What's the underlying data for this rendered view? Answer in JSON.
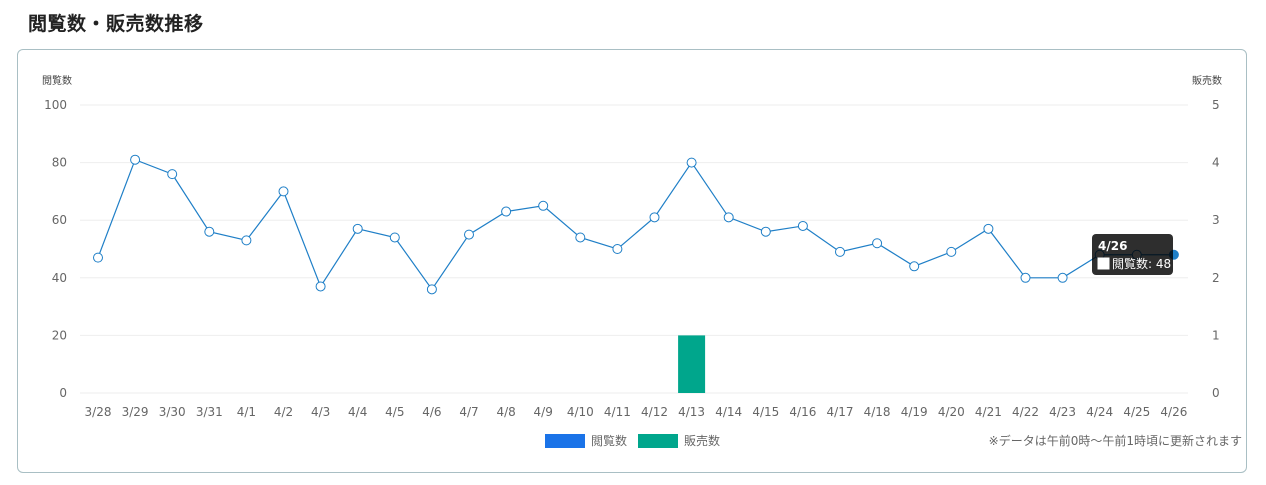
{
  "page_title": "閲覧数・販売数推移",
  "note": "※データは午前0時〜午前1時頃に更新されます",
  "legend": [
    {
      "label": "閲覧数",
      "color": "#1a73e8"
    },
    {
      "label": "販売数",
      "color": "#00a68c"
    }
  ],
  "tooltip": {
    "title": "4/26",
    "line": "閲覧数: 48"
  },
  "chart_data": {
    "type": "bar+line",
    "categories": [
      "3/28",
      "3/29",
      "3/30",
      "3/31",
      "4/1",
      "4/2",
      "4/3",
      "4/4",
      "4/5",
      "4/6",
      "4/7",
      "4/8",
      "4/9",
      "4/10",
      "4/11",
      "4/12",
      "4/13",
      "4/14",
      "4/15",
      "4/16",
      "4/17",
      "4/18",
      "4/19",
      "4/20",
      "4/21",
      "4/22",
      "4/23",
      "4/24",
      "4/25",
      "4/26"
    ],
    "series": [
      {
        "name": "閲覧数",
        "type": "line",
        "axis": "left",
        "color": "#1f7fc7",
        "values": [
          47,
          81,
          76,
          56,
          53,
          70,
          37,
          57,
          54,
          36,
          55,
          63,
          65,
          54,
          50,
          61,
          80,
          61,
          56,
          58,
          49,
          52,
          44,
          49,
          57,
          40,
          40,
          48,
          48,
          48
        ]
      },
      {
        "name": "販売数",
        "type": "bar",
        "axis": "right",
        "color": "#00a68c",
        "values": [
          0,
          0,
          0,
          0,
          0,
          0,
          0,
          0,
          0,
          0,
          0,
          0,
          0,
          0,
          0,
          0,
          1,
          0,
          0,
          0,
          0,
          0,
          0,
          0,
          0,
          0,
          0,
          0,
          0,
          0
        ]
      }
    ],
    "y_left": {
      "label": "閲覧数",
      "min": 0,
      "max": 100,
      "ticks": [
        0,
        20,
        40,
        60,
        80,
        100
      ]
    },
    "y_right": {
      "label": "販売数",
      "min": 0,
      "max": 5,
      "ticks": [
        0,
        1,
        2,
        3,
        4,
        5
      ]
    },
    "grid": true,
    "legend_position": "bottom"
  }
}
